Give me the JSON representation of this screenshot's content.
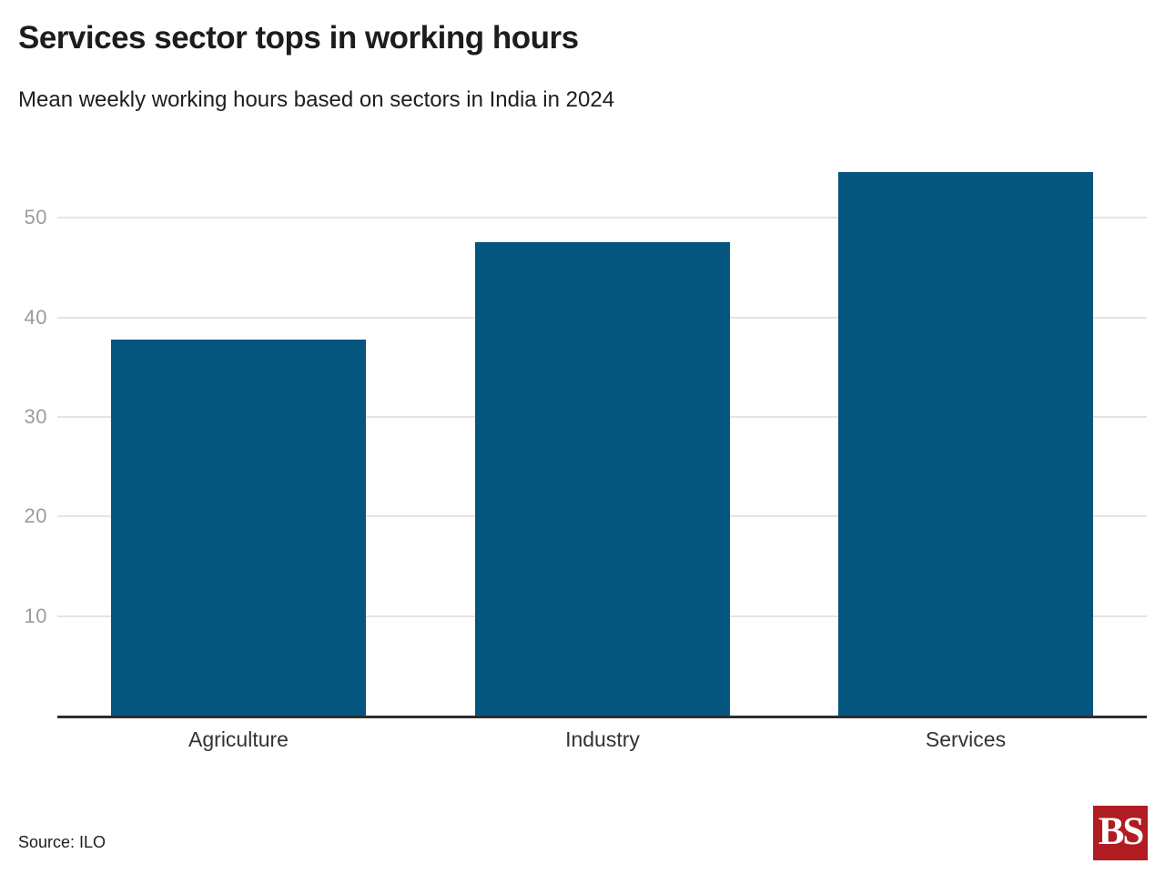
{
  "header": {
    "title": "Services sector tops in working hours",
    "subtitle": "Mean weekly working hours based on sectors in India in 2024"
  },
  "chart_data": {
    "type": "bar",
    "title": "Services sector tops in working hours",
    "subtitle": "Mean weekly working hours based on sectors in India in 2024",
    "categories": [
      "Agriculture",
      "Industry",
      "Services"
    ],
    "values": [
      37.8,
      47.6,
      54.6
    ],
    "xlabel": "",
    "ylabel": "",
    "yticks": [
      10,
      20,
      30,
      40,
      50
    ],
    "ylim": [
      0,
      57.8
    ],
    "grid": true,
    "legend_position": "none",
    "bar_color": "#04567E",
    "gridline_color": "#E4E4E4",
    "axis_line_color": "#2D2D2D"
  },
  "footer": {
    "source": "Source: ILO",
    "logo_text": "BS",
    "logo_color": "#B01C21"
  }
}
